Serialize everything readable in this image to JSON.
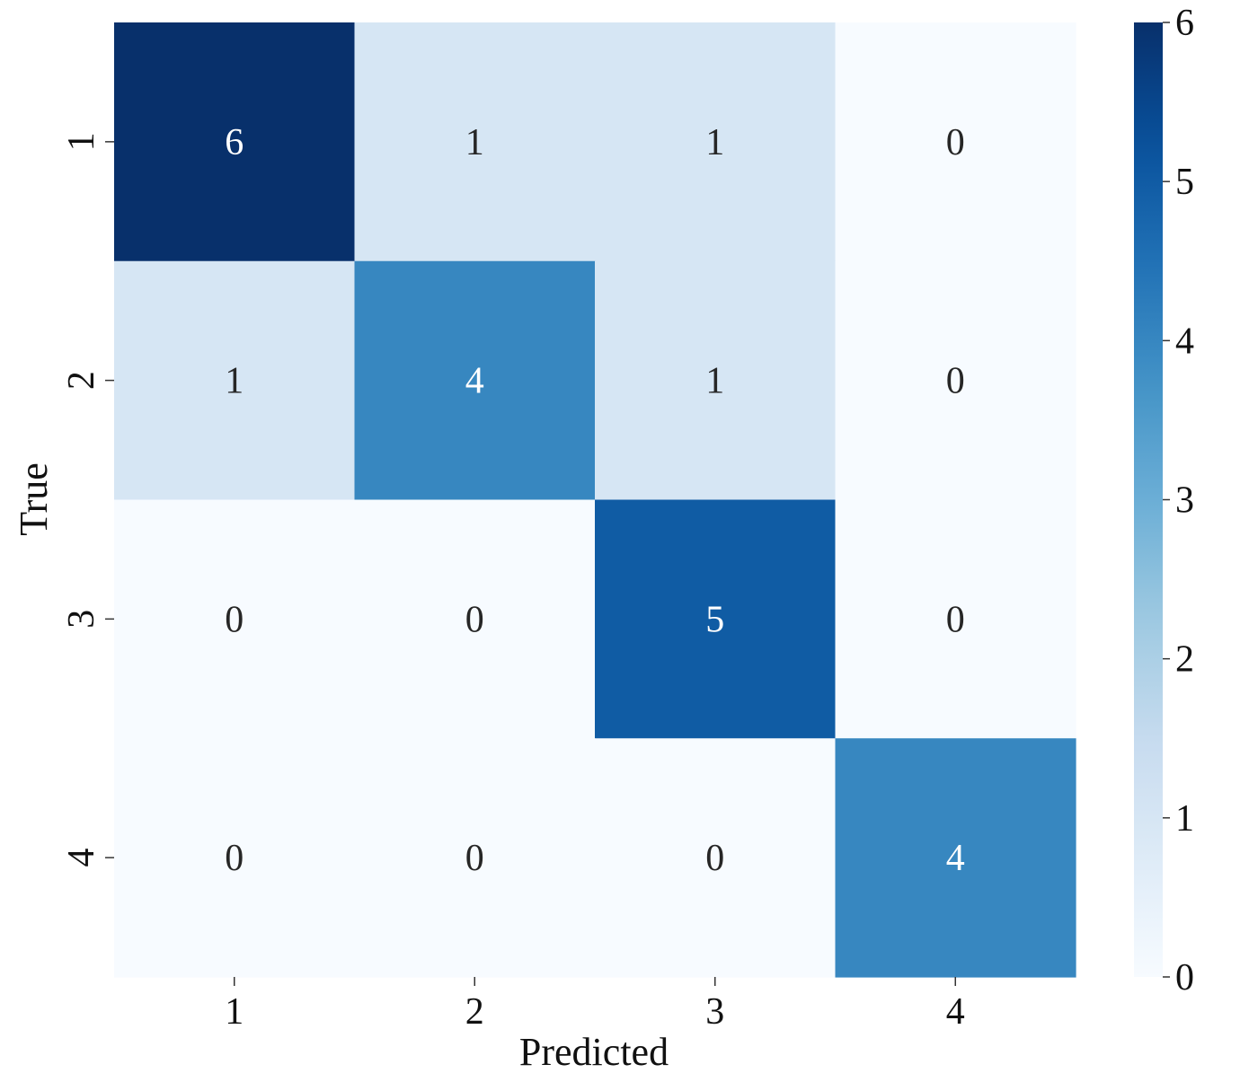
{
  "chart_data": {
    "type": "heatmap",
    "title": "",
    "xlabel": "Predicted",
    "ylabel": "True",
    "x_categories": [
      "1",
      "2",
      "3",
      "4"
    ],
    "y_categories": [
      "1",
      "2",
      "3",
      "4"
    ],
    "values": [
      [
        6,
        1,
        1,
        0
      ],
      [
        1,
        4,
        1,
        0
      ],
      [
        0,
        0,
        5,
        0
      ],
      [
        0,
        0,
        0,
        4
      ]
    ],
    "annotations": [
      [
        "6",
        "1",
        "1",
        "0"
      ],
      [
        "1",
        "4",
        "1",
        "0"
      ],
      [
        "0",
        "0",
        "5",
        "0"
      ],
      [
        "0",
        "0",
        "0",
        "4"
      ]
    ],
    "colormap": "Blues",
    "color_range": [
      0,
      6
    ],
    "colorbar": {
      "ticks": [
        0,
        1,
        2,
        3,
        4,
        5,
        6
      ],
      "tick_labels": [
        "0",
        "1",
        "2",
        "3",
        "4",
        "5",
        "6"
      ]
    },
    "grid": false,
    "legend": "colorbar-right"
  }
}
